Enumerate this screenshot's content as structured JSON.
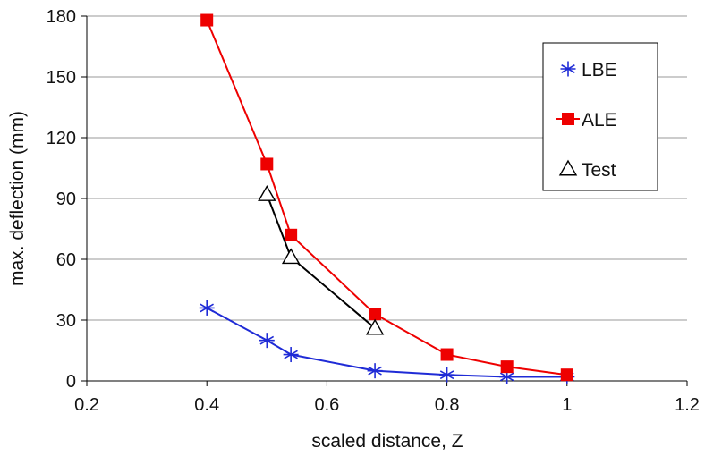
{
  "chart_data": {
    "type": "line",
    "title": "",
    "xlabel": "scaled distance, Z",
    "ylabel": "max. deflection (mm)",
    "xlim": [
      0.2,
      1.2
    ],
    "ylim": [
      0,
      180
    ],
    "xticks": [
      0.2,
      0.4,
      0.6,
      0.8,
      1.0,
      1.2
    ],
    "xtick_labels": [
      "0.2",
      "0.4",
      "0.6",
      "0.8",
      "1",
      "1.2"
    ],
    "yticks": [
      0,
      30,
      60,
      90,
      120,
      150,
      180
    ],
    "ytick_labels": [
      "0",
      "30",
      "60",
      "90",
      "120",
      "150",
      "180"
    ],
    "grid": "horizontal",
    "legend_position": "top-right",
    "series": [
      {
        "name": "LBE",
        "color": "#1f2bd6",
        "marker": "asterisk",
        "x": [
          0.4,
          0.5,
          0.54,
          0.68,
          0.8,
          0.9,
          1.0
        ],
        "y": [
          36,
          20,
          13,
          5,
          3,
          2,
          2
        ]
      },
      {
        "name": "ALE",
        "color": "#ee0000",
        "marker": "square",
        "x": [
          0.4,
          0.5,
          0.54,
          0.68,
          0.8,
          0.9,
          1.0
        ],
        "y": [
          178,
          107,
          72,
          33,
          13,
          7,
          3
        ]
      },
      {
        "name": "Test",
        "color": "#000000",
        "marker": "triangle",
        "x": [
          0.5,
          0.54,
          0.68
        ],
        "y": [
          92,
          61,
          26
        ]
      }
    ]
  }
}
